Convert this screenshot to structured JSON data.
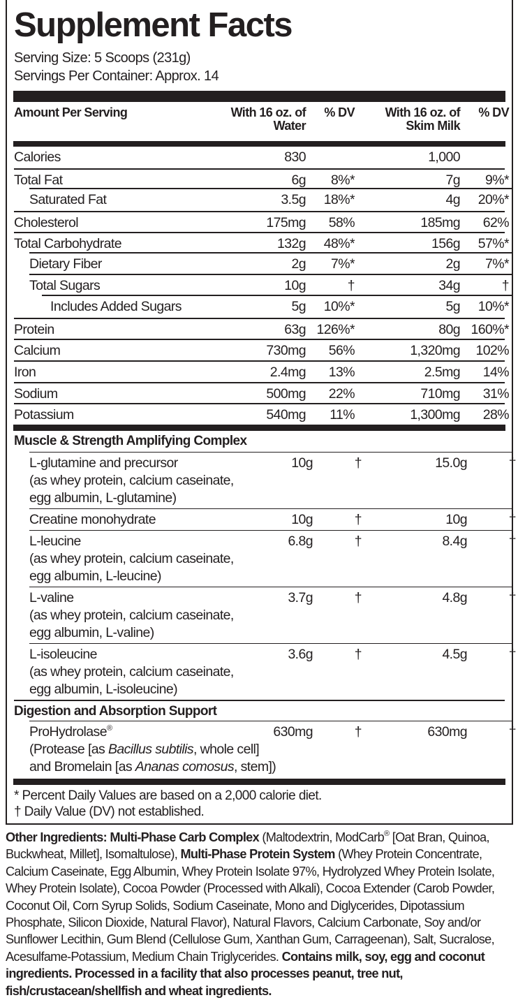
{
  "title": "Supplement Facts",
  "serving_size": "Serving Size: 5 Scoops (231g)",
  "servings_per_container": "Servings Per Container: Approx. 14",
  "header": {
    "amount": "Amount Per Serving",
    "water": "With 16 oz. of Water",
    "dv1": "% DV",
    "milk": "With 16 oz. of Skim Milk",
    "dv2": "% DV"
  },
  "nutrients": [
    {
      "label": "Calories",
      "indent": 0,
      "water": "830",
      "dv1": "",
      "milk": "1,000",
      "dv2": ""
    },
    {
      "label": "Total Fat",
      "indent": 0,
      "water": "6g",
      "dv1": "8%*",
      "milk": "7g",
      "dv2": "9%*"
    },
    {
      "label": "Saturated Fat",
      "indent": 1,
      "water": "3.5g",
      "dv1": "18%*",
      "milk": "4g",
      "dv2": "20%*"
    },
    {
      "label": "Cholesterol",
      "indent": 0,
      "water": "175mg",
      "dv1": "58%",
      "milk": "185mg",
      "dv2": "62%"
    },
    {
      "label": "Total Carbohydrate",
      "indent": 0,
      "water": "132g",
      "dv1": "48%*",
      "milk": "156g",
      "dv2": "57%*"
    },
    {
      "label": "Dietary Fiber",
      "indent": 1,
      "water": "2g",
      "dv1": "7%*",
      "milk": "2g",
      "dv2": "7%*"
    },
    {
      "label": "Total Sugars",
      "indent": 1,
      "water": "10g",
      "dv1": "†",
      "milk": "34g",
      "dv2": "†"
    },
    {
      "label": "Includes Added Sugars",
      "indent": 2,
      "water": "5g",
      "dv1": "10%*",
      "milk": "5g",
      "dv2": "10%*"
    },
    {
      "label": "Protein",
      "indent": 0,
      "water": "63g",
      "dv1": "126%*",
      "milk": "80g",
      "dv2": "160%*"
    },
    {
      "label": "Calcium",
      "indent": 0,
      "water": "730mg",
      "dv1": "56%",
      "milk": "1,320mg",
      "dv2": "102%"
    },
    {
      "label": "Iron",
      "indent": 0,
      "water": "2.4mg",
      "dv1": "13%",
      "milk": "2.5mg",
      "dv2": "14%"
    },
    {
      "label": "Sodium",
      "indent": 0,
      "water": "500mg",
      "dv1": "22%",
      "milk": "710mg",
      "dv2": "31%"
    },
    {
      "label": "Potassium",
      "indent": 0,
      "water": "540mg",
      "dv1": "11%",
      "milk": "1,300mg",
      "dv2": "28%"
    }
  ],
  "sections": [
    {
      "title": "Muscle & Strength Amplifying Complex",
      "items": [
        {
          "label": "L-glutamine and precursor",
          "sub": [
            [
              {
                "text": "(as whey protein, calcium caseinate,"
              }
            ],
            [
              {
                "text": "egg albumin, L-glutamine)"
              }
            ]
          ],
          "water": "10g",
          "dv1": "†",
          "milk": "15.0g",
          "dv2": "†"
        },
        {
          "label": "Creatine monohydrate",
          "sub": [],
          "water": "10g",
          "dv1": "†",
          "milk": "10g",
          "dv2": "†"
        },
        {
          "label": "L-leucine",
          "sub": [
            [
              {
                "text": "(as whey protein, calcium caseinate,"
              }
            ],
            [
              {
                "text": "egg albumin, L-leucine)"
              }
            ]
          ],
          "water": "6.8g",
          "dv1": "†",
          "milk": "8.4g",
          "dv2": "†"
        },
        {
          "label": "L-valine",
          "sub": [
            [
              {
                "text": "(as whey protein, calcium caseinate,"
              }
            ],
            [
              {
                "text": "egg albumin, L-valine)"
              }
            ]
          ],
          "water": "3.7g",
          "dv1": "†",
          "milk": "4.8g",
          "dv2": "†"
        },
        {
          "label": "L-isoleucine",
          "sub": [
            [
              {
                "text": "(as whey protein, calcium caseinate,"
              }
            ],
            [
              {
                "text": "egg albumin, L-isoleucine)"
              }
            ]
          ],
          "water": "3.6g",
          "dv1": "†",
          "milk": "4.5g",
          "dv2": "†"
        }
      ]
    },
    {
      "title": "Digestion and Absorption Support",
      "items": [
        {
          "label": "ProHydrolase",
          "label_sup": "®",
          "sub": [
            [
              {
                "text": "(Protease [as "
              },
              {
                "text": "Bacillus subtilis",
                "italic": true
              },
              {
                "text": ", whole cell]"
              }
            ],
            [
              {
                "text": "and Bromelain [as "
              },
              {
                "text": "Ananas comosus",
                "italic": true
              },
              {
                "text": ", stem])"
              }
            ]
          ],
          "water": "630mg",
          "dv1": "†",
          "milk": "630mg",
          "dv2": "†"
        }
      ]
    }
  ],
  "footnotes": [
    "* Percent Daily Values are based on a 2,000 calorie diet.",
    "† Daily Value (DV) not established."
  ],
  "other_ingredients": [
    {
      "text": "Other Ingredients: Multi-Phase Carb Complex",
      "bold": true
    },
    {
      "text": " (Maltodextrin, ModCarb"
    },
    {
      "text": "®",
      "sup": true
    },
    {
      "text": " [Oat Bran, Quinoa, Buckwheat, Millet], Isomaltulose), "
    },
    {
      "text": "Multi-Phase Protein System",
      "bold": true
    },
    {
      "text": " (Whey Protein Concentrate, Calcium Caseinate, Egg Albumin, Whey Protein Isolate 97%, Hydrolyzed Whey Protein Isolate, Whey Protein Isolate), Cocoa Powder (Processed with Alkali), Cocoa Extender (Carob Powder, Coconut Oil, Corn Syrup Solids, Sodium Caseinate, Mono and Diglycerides, Dipotassium Phosphate, Silicon Dioxide, Natural Flavor), Natural Flavors, Calcium Carbonate, Soy and/or Sunflower Lecithin, Gum Blend (Cellulose Gum, Xanthan Gum, Carrageenan), Salt, Sucralose, Acesulfame-Potassium, Medium Chain Triglycerides. "
    },
    {
      "text": "Contains milk, soy, egg and coconut ingredients. Processed in a facility that also processes peanut, tree nut, fish/crustacean/shellfish and wheat ingredients.",
      "bold": true
    }
  ]
}
